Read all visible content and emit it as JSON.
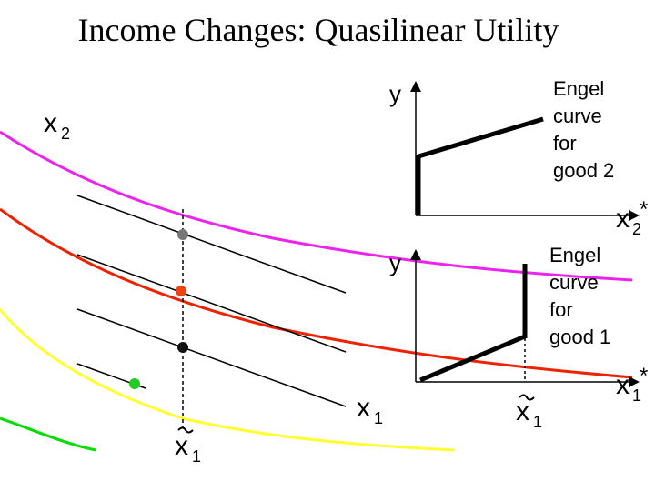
{
  "title": "Income Changes: Quasilinear Utility",
  "main_diagram": {
    "x_axis_label": "x",
    "x_axis_sub": "1",
    "y_axis_label": "x",
    "y_axis_sub": "2",
    "tilde_label": "x",
    "tilde_sub": "1",
    "indifference_colors": [
      "#00dd00",
      "#ffff33",
      "#ee2200",
      "#ee22ee"
    ],
    "point_colors": [
      "#22cc22",
      "#111111",
      "#ee4411",
      "#777777"
    ]
  },
  "engel_good2": {
    "y_label": "y",
    "x_label": "x",
    "x_sub": "2",
    "x_sup": "*",
    "caption_lines": [
      "Engel",
      "curve",
      "for",
      "good 2"
    ]
  },
  "engel_good1": {
    "y_label": "y",
    "x_label": "x",
    "x_sub": "1",
    "x_sup": "*",
    "tilde_label": "x",
    "tilde_sub": "1",
    "caption_lines": [
      "Engel",
      "curve",
      "for",
      "good 1"
    ]
  }
}
